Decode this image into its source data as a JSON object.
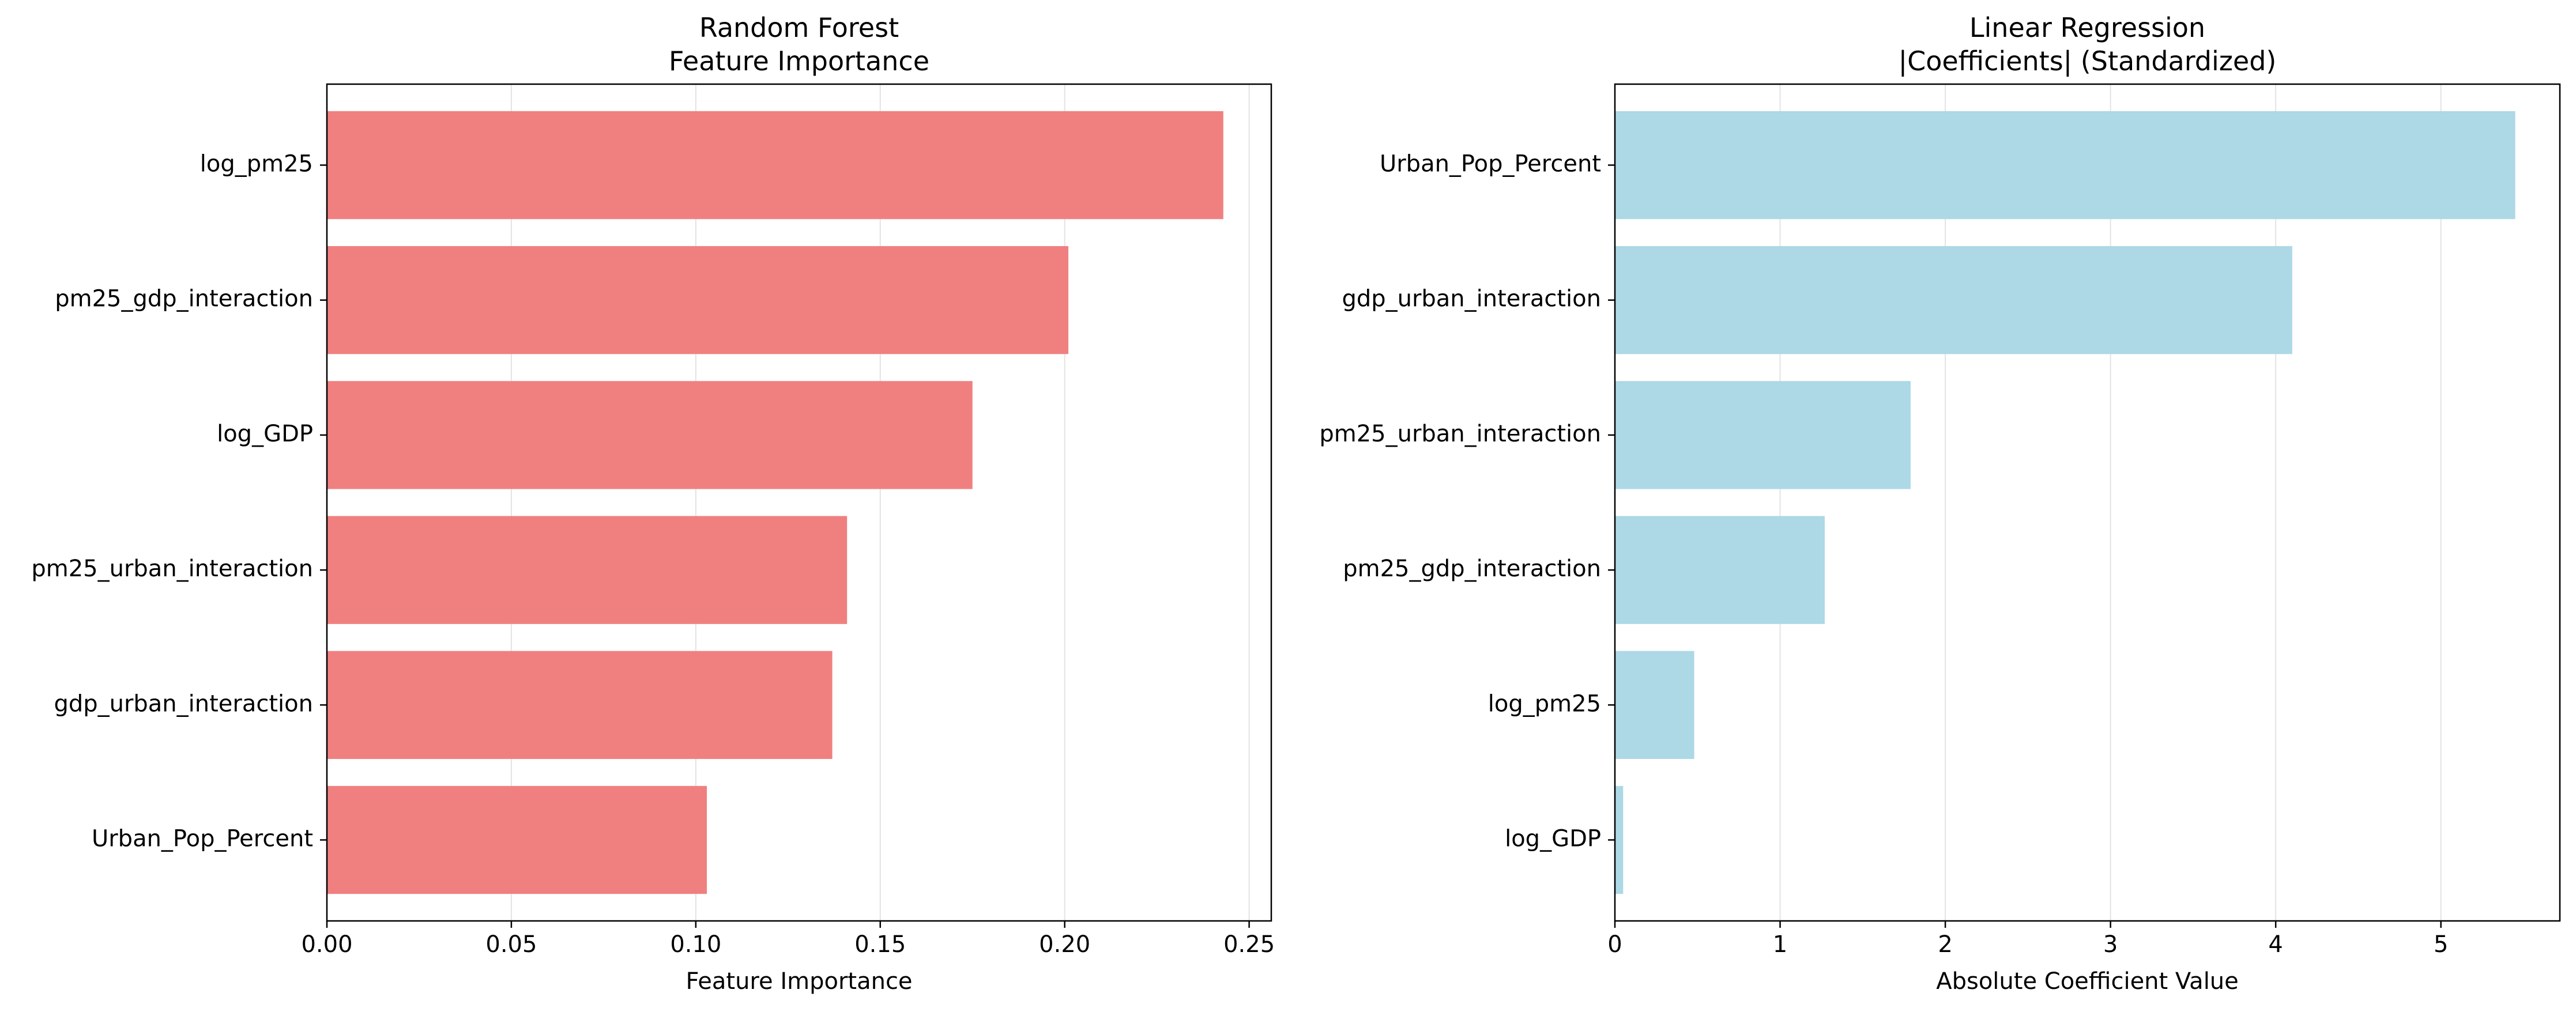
{
  "chart_data": [
    {
      "type": "bar",
      "orientation": "horizontal",
      "title": "Random Forest\nFeature Importance",
      "xlabel": "Feature Importance",
      "ylabel": "",
      "categories": [
        "log_pm25",
        "pm25_gdp_interaction",
        "log_GDP",
        "pm25_urban_interaction",
        "gdp_urban_interaction",
        "Urban_Pop_Percent"
      ],
      "values": [
        0.243,
        0.201,
        0.175,
        0.141,
        0.137,
        0.103
      ],
      "xlim": [
        0,
        0.256
      ],
      "xticks": [
        0.0,
        0.05,
        0.1,
        0.15,
        0.2,
        0.25
      ],
      "xtick_labels": [
        "0.00",
        "0.05",
        "0.10",
        "0.15",
        "0.20",
        "0.25"
      ],
      "grid": "x",
      "color": "#F08080",
      "grid_color": "#E3E3E3"
    },
    {
      "type": "bar",
      "orientation": "horizontal",
      "title": "Linear Regression\n|Coefficients| (Standardized)",
      "xlabel": "Absolute Coefficient Value",
      "ylabel": "",
      "categories": [
        "Urban_Pop_Percent",
        "gdp_urban_interaction",
        "pm25_urban_interaction",
        "pm25_gdp_interaction",
        "log_pm25",
        "log_GDP"
      ],
      "values": [
        5.45,
        4.1,
        1.79,
        1.27,
        0.48,
        0.05
      ],
      "xlim": [
        0,
        5.72
      ],
      "xticks": [
        0,
        1,
        2,
        3,
        4,
        5
      ],
      "xtick_labels": [
        "0",
        "1",
        "2",
        "3",
        "4",
        "5"
      ],
      "grid": "x",
      "color": "#ADD8E6",
      "grid_color": "#E3E3E3"
    }
  ]
}
